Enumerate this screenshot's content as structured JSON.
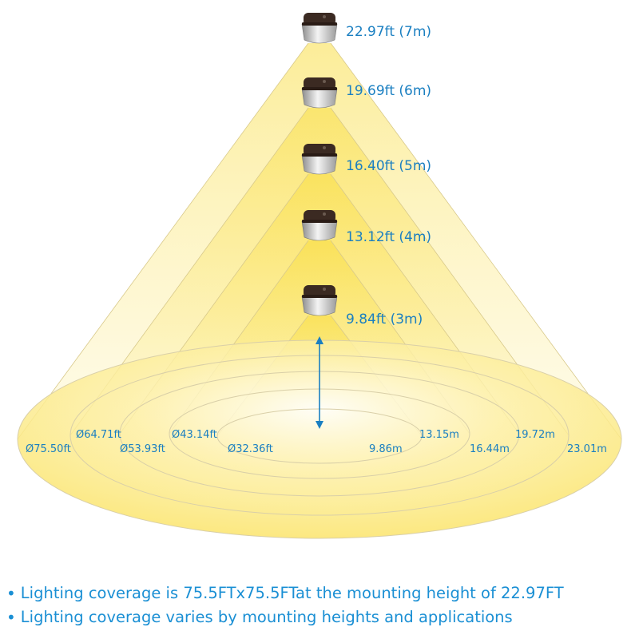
{
  "fixtures": [
    {
      "height_label": "22.97ft (7m)",
      "height_m": 7,
      "diameter_ft_label": "Ø75.50ft",
      "diameter_m_label": "23.01m"
    },
    {
      "height_label": "19.69ft (6m)",
      "height_m": 6,
      "diameter_ft_label": "Ø64.71ft",
      "diameter_m_label": "19.72m"
    },
    {
      "height_label": "16.40ft (5m)",
      "height_m": 5,
      "diameter_ft_label": "Ø53.93ft",
      "diameter_m_label": "16.44m"
    },
    {
      "height_label": "13.12ft (4m)",
      "height_m": 4,
      "diameter_ft_label": "Ø43.14ft",
      "diameter_m_label": "13.15m"
    },
    {
      "height_label": "9.84ft (3m)",
      "height_m": 3,
      "diameter_ft_label": "Ø32.36ft",
      "diameter_m_label": "9.86m"
    }
  ],
  "colors": {
    "light": "#fbe25a",
    "light_fade": "#fffbe6",
    "text": "#1a8fd4",
    "fixture_body": "#3b2a22",
    "arrow": "#1a7fc1"
  },
  "notes": [
    "Lighting coverage is 75.5FTx75.5FTat the mounting height of 22.97FT",
    "Lighting coverage varies by mounting heights and applications"
  ]
}
